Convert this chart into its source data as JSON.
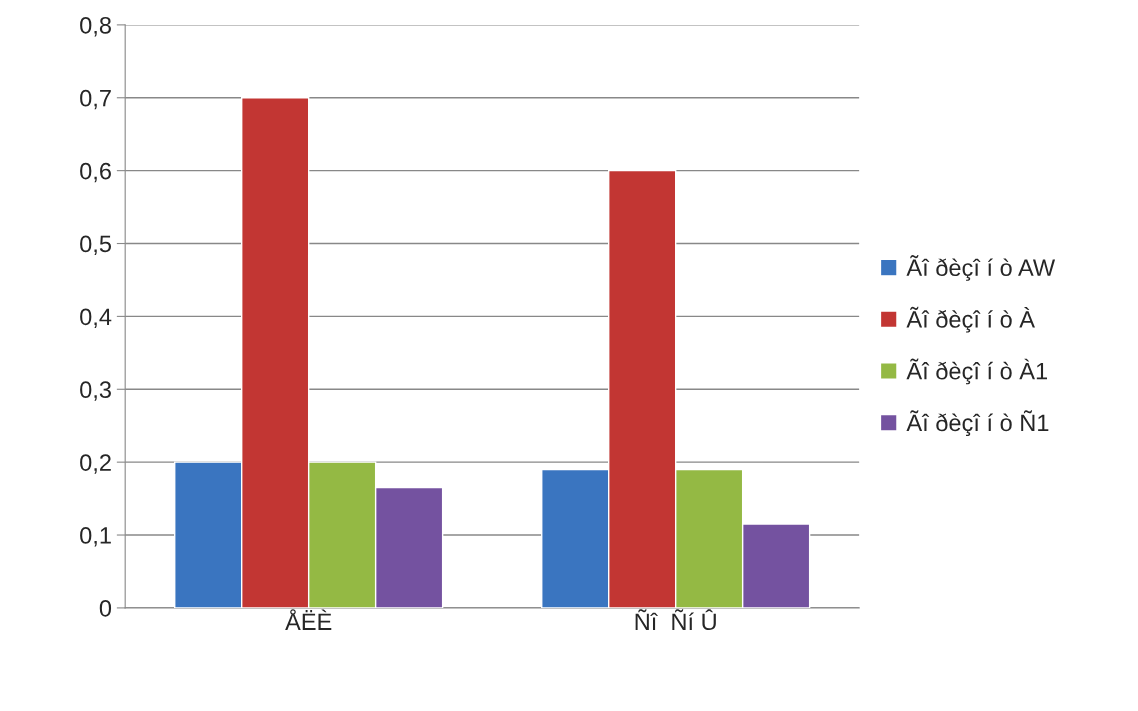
{
  "chart_data": {
    "type": "bar",
    "categories": [
      "ÅËÈ",
      "Ñî  Ñí Û"
    ],
    "series": [
      {
        "name": "Ãî ðèçî í ò AW",
        "color": "#3a75c0",
        "values": [
          0.2,
          0.19
        ]
      },
      {
        "name": "Ãî ðèçî í ò À",
        "color": "#c23633",
        "values": [
          0.7,
          0.6
        ]
      },
      {
        "name": "Ãî ðèçî í ò À1",
        "color": "#94b944",
        "values": [
          0.2,
          0.19
        ]
      },
      {
        "name": "Ãî ðèçî í ò Ñ1",
        "color": "#7452a0",
        "values": [
          0.165,
          0.115
        ]
      }
    ],
    "ylim": [
      0,
      0.8
    ],
    "yticks": [
      {
        "value": 0,
        "label": "0"
      },
      {
        "value": 0.1,
        "label": "0,1"
      },
      {
        "value": 0.2,
        "label": "0,2"
      },
      {
        "value": 0.3,
        "label": "0,3"
      },
      {
        "value": 0.4,
        "label": "0,4"
      },
      {
        "value": 0.5,
        "label": "0,5"
      },
      {
        "value": 0.6,
        "label": "0,6"
      },
      {
        "value": 0.7,
        "label": "0,7"
      },
      {
        "value": 0.8,
        "label": "0,8"
      }
    ],
    "grid": "y",
    "legend": "right"
  }
}
